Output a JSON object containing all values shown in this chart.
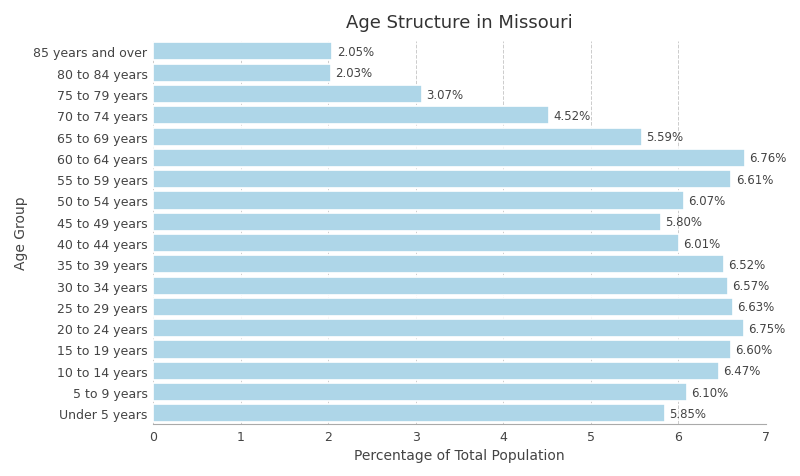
{
  "title": "Age Structure in Missouri",
  "xlabel": "Percentage of Total Population",
  "ylabel": "Age Group",
  "categories": [
    "85 years and over",
    "80 to 84 years",
    "75 to 79 years",
    "70 to 74 years",
    "65 to 69 years",
    "60 to 64 years",
    "55 to 59 years",
    "50 to 54 years",
    "45 to 49 years",
    "40 to 44 years",
    "35 to 39 years",
    "30 to 34 years",
    "25 to 29 years",
    "20 to 24 years",
    "15 to 19 years",
    "10 to 14 years",
    "5 to 9 years",
    "Under 5 years"
  ],
  "values": [
    2.05,
    2.03,
    3.07,
    4.52,
    5.59,
    6.76,
    6.61,
    6.07,
    5.8,
    6.01,
    6.52,
    6.57,
    6.63,
    6.75,
    6.6,
    6.47,
    6.1,
    5.85
  ],
  "bar_color": "#aed6e8",
  "bar_edge_color": "#ffffff",
  "background_color": "#ffffff",
  "plot_bg_color": "#ffffff",
  "grid_color": "#cccccc",
  "text_color": "#444444",
  "title_color": "#333333",
  "xlim": [
    0,
    7
  ],
  "xticks": [
    0,
    1,
    2,
    3,
    4,
    5,
    6,
    7
  ],
  "title_fontsize": 13,
  "label_fontsize": 10,
  "tick_fontsize": 9,
  "value_fontsize": 8.5,
  "bar_height": 0.85
}
